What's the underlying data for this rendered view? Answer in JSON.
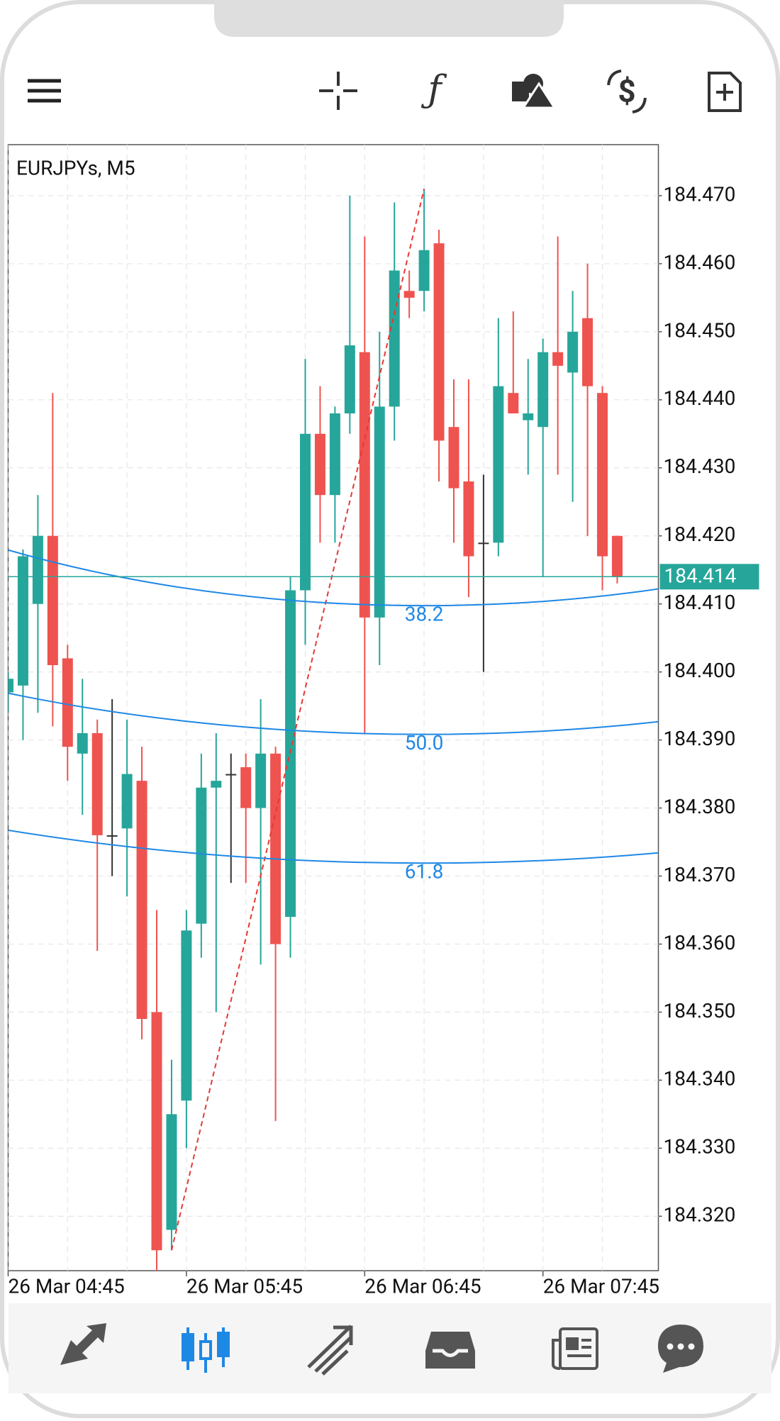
{
  "chart_data": {
    "type": "candlestick",
    "title": "EURJPYs, M5",
    "categories": [
      "26 Mar 04:45",
      null,
      null,
      null,
      null,
      null,
      null,
      null,
      null,
      null,
      null,
      null,
      "26 Mar 05:45",
      null,
      null,
      null,
      null,
      null,
      null,
      null,
      null,
      null,
      null,
      null,
      "26 Mar 06:45",
      null,
      null,
      null,
      null,
      null,
      null,
      null,
      null,
      null,
      null,
      null,
      "26 Mar 07:45",
      null,
      null,
      null,
      null,
      null
    ],
    "open": [
      184.397,
      184.398,
      184.41,
      184.42,
      184.402,
      184.388,
      184.391,
      184.376,
      184.377,
      184.384,
      184.35,
      184.318,
      184.337,
      184.363,
      184.383,
      184.385,
      184.386,
      184.38,
      184.388,
      184.364,
      184.412,
      184.435,
      184.426,
      184.438,
      184.447,
      184.408,
      184.439,
      184.456,
      184.456,
      184.463,
      184.436,
      184.428,
      184.419,
      184.419,
      184.441,
      184.437,
      184.436,
      184.447,
      184.444,
      184.452,
      184.441,
      184.42
    ],
    "high": [
      184.4,
      184.418,
      184.426,
      184.441,
      184.404,
      184.399,
      184.393,
      184.396,
      184.393,
      184.389,
      184.365,
      184.343,
      184.365,
      184.388,
      184.391,
      184.388,
      184.388,
      184.396,
      184.389,
      184.414,
      184.446,
      184.442,
      184.439,
      184.47,
      184.464,
      184.45,
      184.469,
      184.459,
      184.471,
      184.465,
      184.443,
      184.443,
      184.429,
      184.452,
      184.453,
      184.446,
      184.449,
      184.464,
      184.456,
      184.46,
      184.442,
      184.42
    ],
    "low": [
      184.394,
      184.39,
      184.394,
      184.392,
      184.384,
      184.379,
      184.359,
      184.37,
      184.367,
      184.346,
      184.312,
      184.315,
      184.33,
      184.358,
      184.35,
      184.369,
      184.369,
      184.357,
      184.334,
      184.358,
      184.404,
      184.419,
      184.419,
      184.435,
      184.391,
      184.401,
      184.434,
      184.452,
      184.453,
      184.428,
      184.419,
      184.411,
      184.4,
      184.417,
      184.438,
      184.429,
      184.414,
      184.429,
      184.425,
      184.42,
      184.412,
      184.413
    ],
    "close": [
      184.399,
      184.417,
      184.42,
      184.401,
      184.389,
      184.391,
      184.376,
      184.376,
      184.385,
      184.349,
      184.315,
      184.335,
      184.362,
      184.383,
      184.384,
      184.385,
      184.38,
      184.388,
      184.36,
      184.412,
      184.435,
      184.426,
      184.438,
      184.448,
      184.408,
      184.439,
      184.459,
      184.455,
      184.462,
      184.434,
      184.427,
      184.417,
      184.419,
      184.442,
      184.438,
      184.438,
      184.447,
      184.445,
      184.45,
      184.442,
      184.417,
      184.414
    ],
    "up_color": "#26a69a",
    "down_color": "#ef5350",
    "doji_color": "#333333",
    "ylim": [
      184.312,
      184.4775
    ],
    "yticks": [
      {
        "value": 184.47,
        "label": "184.470"
      },
      {
        "value": 184.46,
        "label": "184.460"
      },
      {
        "value": 184.45,
        "label": "184.450"
      },
      {
        "value": 184.44,
        "label": "184.440"
      },
      {
        "value": 184.43,
        "label": "184.430"
      },
      {
        "value": 184.42,
        "label": "184.420"
      },
      {
        "value": 184.41,
        "label": "184.410"
      },
      {
        "value": 184.4,
        "label": "184.400"
      },
      {
        "value": 184.39,
        "label": "184.390"
      },
      {
        "value": 184.38,
        "label": "184.380"
      },
      {
        "value": 184.37,
        "label": "184.370"
      },
      {
        "value": 184.36,
        "label": "184.360"
      },
      {
        "value": 184.35,
        "label": "184.350"
      },
      {
        "value": 184.34,
        "label": "184.340"
      },
      {
        "value": 184.33,
        "label": "184.330"
      },
      {
        "value": 184.32,
        "label": "184.320"
      }
    ],
    "grid": true,
    "current_price": 184.414,
    "current_price_color": "#26a69a",
    "trendline": {
      "from": {
        "index": 11,
        "price": 184.315
      },
      "to": {
        "index": 28,
        "price": 184.471
      },
      "color": "#e53935"
    },
    "fib_levels": [
      38.2,
      {
        "value": 50,
        "label": "50.0"
      },
      61.8
    ],
    "fib_color": "#1e88e5"
  }
}
